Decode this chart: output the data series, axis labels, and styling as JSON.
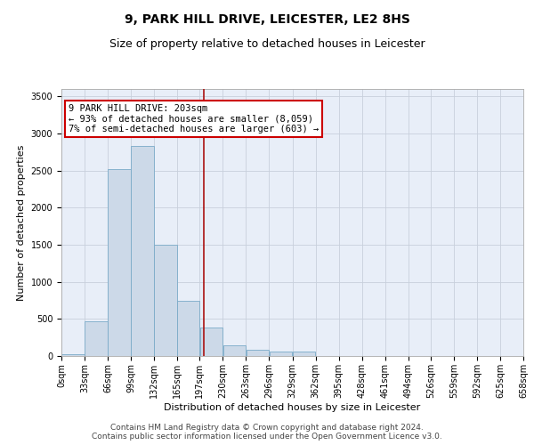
{
  "title": "9, PARK HILL DRIVE, LEICESTER, LE2 8HS",
  "subtitle": "Size of property relative to detached houses in Leicester",
  "xlabel": "Distribution of detached houses by size in Leicester",
  "ylabel": "Number of detached properties",
  "bar_color": "#ccd9e8",
  "bar_edge_color": "#7aaac8",
  "grid_color": "#c8d0dc",
  "background_color": "#e8eef8",
  "vline_x": 203,
  "vline_color": "#aa1111",
  "annotation_text": "9 PARK HILL DRIVE: 203sqm\n← 93% of detached houses are smaller (8,059)\n7% of semi-detached houses are larger (603) →",
  "annotation_box_color": "#ffffff",
  "annotation_box_edge": "#cc0000",
  "footer_line1": "Contains HM Land Registry data © Crown copyright and database right 2024.",
  "footer_line2": "Contains public sector information licensed under the Open Government Licence v3.0.",
  "bin_edges": [
    0,
    33,
    66,
    99,
    132,
    165,
    197,
    230,
    263,
    296,
    329,
    362,
    395,
    428,
    461,
    494,
    526,
    559,
    592,
    625,
    658
  ],
  "bin_counts": [
    20,
    470,
    2520,
    2830,
    1500,
    750,
    390,
    150,
    80,
    60,
    55,
    0,
    0,
    0,
    0,
    0,
    0,
    0,
    0,
    0
  ],
  "ylim": [
    0,
    3600
  ],
  "yticks": [
    0,
    500,
    1000,
    1500,
    2000,
    2500,
    3000,
    3500
  ],
  "title_fontsize": 10,
  "subtitle_fontsize": 9,
  "axis_label_fontsize": 8,
  "tick_fontsize": 7,
  "annotation_fontsize": 7.5,
  "footer_fontsize": 6.5
}
